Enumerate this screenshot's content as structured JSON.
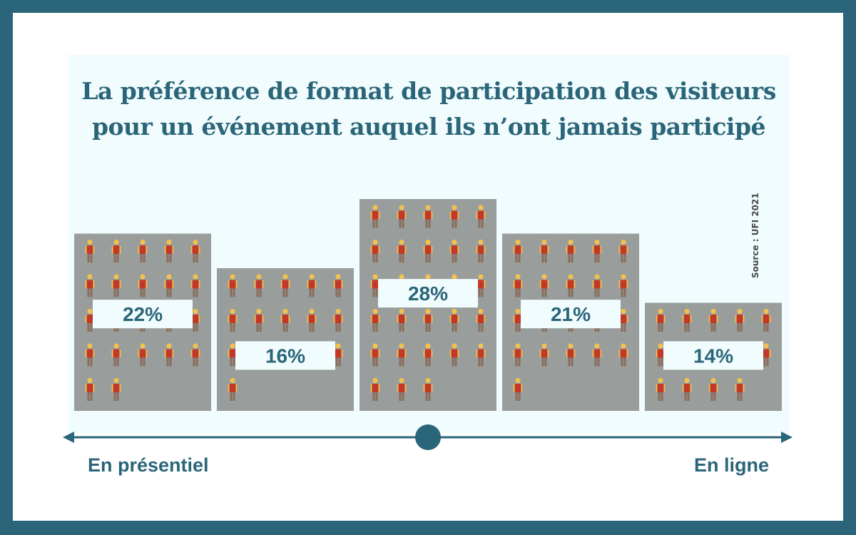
{
  "title_line1": "La préférence de format de participation des visiteurs",
  "title_line2": "pour un événement auquel ils n’ont jamais participé",
  "source": "Source : UFI 2021",
  "axis": {
    "left_label": "En présentiel",
    "right_label": "En ligne"
  },
  "colors": {
    "frame": "#2b6579",
    "panel": "#f0fcfd",
    "bar": "#999d9c",
    "label_box": "#f0fcfd",
    "text": "#2b6579",
    "person_shirt": "#c0392b",
    "person_skin": "#f2c14e",
    "person_legs": "#8a6d5c"
  },
  "chart_data": {
    "type": "bar",
    "title": "La préférence de format de participation des visiteurs pour un événement auquel ils n’ont jamais participé",
    "categories": [
      "",
      "",
      "",
      "",
      ""
    ],
    "values": [
      22,
      16,
      28,
      21,
      14
    ],
    "labels": [
      "22%",
      "16%",
      "28%",
      "21%",
      "14%"
    ],
    "unit": "%",
    "person_icon_counts": [
      22,
      16,
      28,
      21,
      14
    ],
    "icons_per_row": 5,
    "ylim": [
      0,
      30
    ],
    "grid": false,
    "legend": "none"
  }
}
